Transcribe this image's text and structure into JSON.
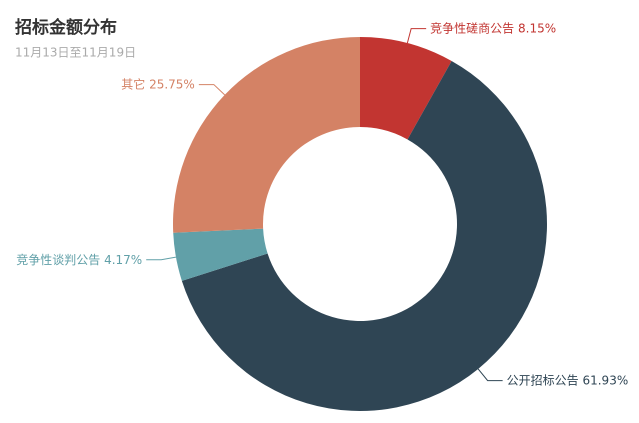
{
  "chart_data": {
    "type": "pie",
    "title": "招标金额分布",
    "subtitle": "11月13日至11月19日",
    "categories": [
      "竞争性磋商公告",
      "公开招标公告",
      "竞争性谈判公告",
      "其它"
    ],
    "values": [
      8.15,
      61.93,
      4.17,
      25.75
    ],
    "value_labels": [
      "8.15%",
      "61.93%",
      "4.17%",
      "25.75%"
    ],
    "colors": [
      "#c23531",
      "#2f4554",
      "#61a0a8",
      "#d48265"
    ]
  }
}
